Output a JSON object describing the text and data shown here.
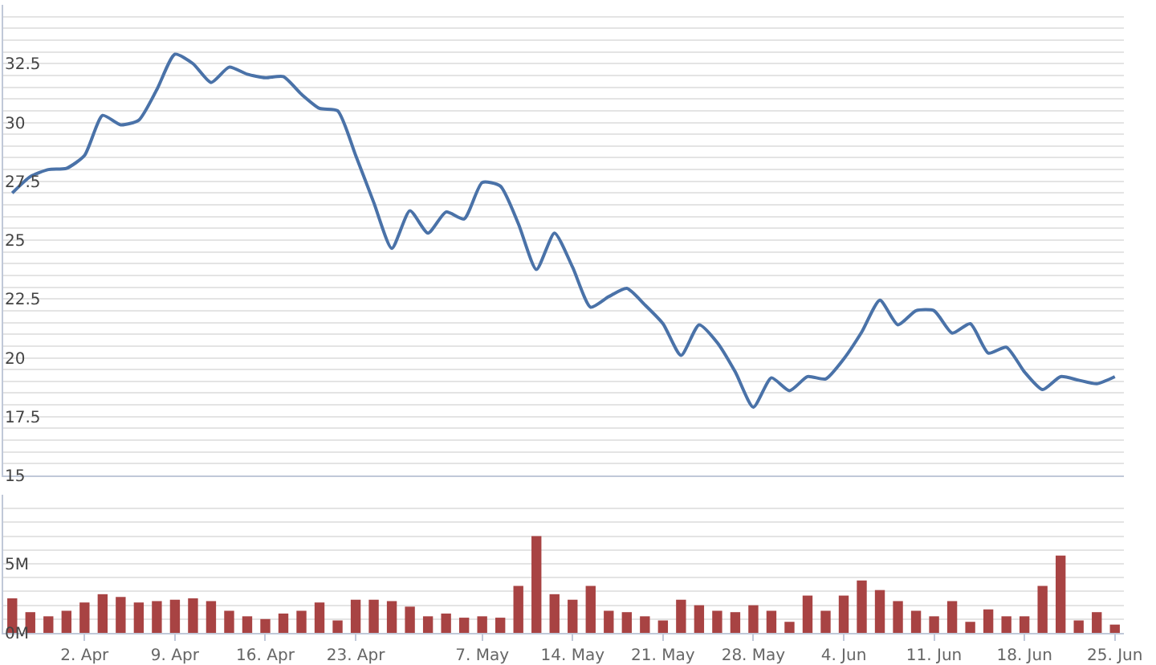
{
  "chart_data": [
    {
      "type": "line",
      "color": "#4a72a8",
      "tick_labels": "y",
      "grid": "y",
      "ylim": [
        15,
        35
      ],
      "categories": [
        null,
        null,
        null,
        null,
        null,
        null,
        null,
        null,
        null,
        null,
        null,
        null,
        null,
        null,
        null,
        null,
        null,
        null,
        null,
        null,
        null,
        null,
        null,
        null,
        null,
        null,
        null,
        null,
        null,
        null,
        null,
        null,
        null,
        null,
        null,
        null,
        null,
        null,
        null,
        null,
        null,
        null,
        null,
        null,
        null,
        null,
        null,
        null,
        null,
        null,
        null,
        null,
        null,
        null,
        null,
        null,
        null,
        null,
        null,
        null,
        null,
        null
      ],
      "values": [
        27.0,
        27.7,
        28.0,
        28.05,
        28.6,
        30.3,
        29.9,
        30.1,
        31.4,
        32.9,
        32.5,
        31.7,
        32.35,
        32.05,
        31.9,
        31.95,
        31.2,
        30.6,
        30.5,
        28.6,
        26.6,
        24.65,
        26.25,
        25.3,
        26.2,
        25.9,
        27.45,
        27.3,
        25.7,
        23.75,
        25.3,
        23.85,
        22.15,
        22.6,
        22.95,
        22.25,
        21.45,
        20.1,
        21.4,
        20.65,
        19.4,
        17.9,
        19.15,
        18.6,
        19.2,
        19.1,
        19.95,
        21.1,
        22.45,
        21.4,
        22.0,
        22.0,
        21.05,
        21.45,
        20.2,
        20.45,
        19.4,
        18.65,
        19.2,
        19.05,
        18.9,
        19.2
      ],
      "yticks": [
        15,
        {
          "value": 15.5,
          "label": null
        },
        {
          "value": 16,
          "label": null
        },
        {
          "value": 16.5,
          "label": null
        },
        {
          "value": 17,
          "label": null
        },
        17.5,
        {
          "value": 18,
          "label": null
        },
        {
          "value": 18.5,
          "label": null
        },
        {
          "value": 19,
          "label": null
        },
        {
          "value": 19.5,
          "label": null
        },
        20,
        {
          "value": 20.5,
          "label": null
        },
        {
          "value": 21,
          "label": null
        },
        {
          "value": 21.5,
          "label": null
        },
        {
          "value": 22,
          "label": null
        },
        22.5,
        {
          "value": 23,
          "label": null
        },
        {
          "value": 23.5,
          "label": null
        },
        {
          "value": 24,
          "label": null
        },
        {
          "value": 24.5,
          "label": null
        },
        25,
        {
          "value": 25.5,
          "label": null
        },
        {
          "value": 26,
          "label": null
        },
        {
          "value": 26.5,
          "label": null
        },
        {
          "value": 27,
          "label": null
        },
        27.5,
        {
          "value": 28,
          "label": null
        },
        {
          "value": 28.5,
          "label": null
        },
        {
          "value": 29,
          "label": null
        },
        {
          "value": 29.5,
          "label": null
        },
        30,
        {
          "value": 30.5,
          "label": null
        },
        {
          "value": 31,
          "label": null
        },
        {
          "value": 31.5,
          "label": null
        },
        {
          "value": 32,
          "label": null
        },
        32.5,
        {
          "value": 33,
          "label": null
        },
        {
          "value": 33.5,
          "label": null
        },
        {
          "value": 34,
          "label": null
        },
        {
          "value": 34.5,
          "label": null
        }
      ]
    },
    {
      "type": "bar",
      "color": "#a84343",
      "grid": "y",
      "ylim": [
        0,
        10
      ],
      "categories": [
        null,
        null,
        null,
        null,
        "2. Apr",
        null,
        null,
        null,
        null,
        "9. Apr",
        null,
        null,
        null,
        null,
        "16. Apr",
        null,
        null,
        null,
        null,
        "23. Apr",
        null,
        null,
        null,
        null,
        null,
        null,
        "7. May",
        null,
        null,
        null,
        null,
        "14. May",
        null,
        null,
        null,
        null,
        "21. May",
        null,
        null,
        null,
        null,
        "28. May",
        null,
        null,
        null,
        null,
        "4. Jun",
        null,
        null,
        null,
        null,
        "11. Jun",
        null,
        null,
        null,
        null,
        "18. Jun",
        null,
        null,
        null,
        null,
        "25. Jun"
      ],
      "values": [
        2.5,
        1.5,
        1.2,
        1.6,
        2.2,
        2.8,
        2.6,
        2.2,
        2.3,
        2.4,
        2.5,
        2.3,
        1.6,
        1.2,
        1.0,
        1.4,
        1.6,
        2.2,
        0.9,
        2.4,
        2.4,
        2.3,
        1.9,
        1.2,
        1.4,
        1.1,
        1.2,
        1.1,
        3.4,
        7.0,
        2.8,
        2.4,
        3.4,
        1.6,
        1.5,
        1.2,
        0.9,
        2.4,
        2.0,
        1.6,
        1.5,
        2.0,
        1.6,
        0.8,
        2.7,
        1.6,
        2.7,
        3.8,
        3.1,
        2.3,
        1.6,
        1.2,
        2.3,
        0.8,
        1.7,
        1.2,
        1.2,
        3.4,
        5.6,
        0.9,
        1.5,
        0.6
      ],
      "yticks": [
        {
          "value": 0,
          "label": "0M"
        },
        {
          "value": 1,
          "label": null
        },
        {
          "value": 2,
          "label": null
        },
        {
          "value": 3,
          "label": null
        },
        {
          "value": 4,
          "label": null
        },
        {
          "value": 5,
          "label": "5M"
        },
        {
          "value": 6,
          "label": null
        },
        {
          "value": 7,
          "label": null
        },
        {
          "value": 8,
          "label": null
        },
        {
          "value": 9,
          "label": null
        }
      ]
    }
  ]
}
